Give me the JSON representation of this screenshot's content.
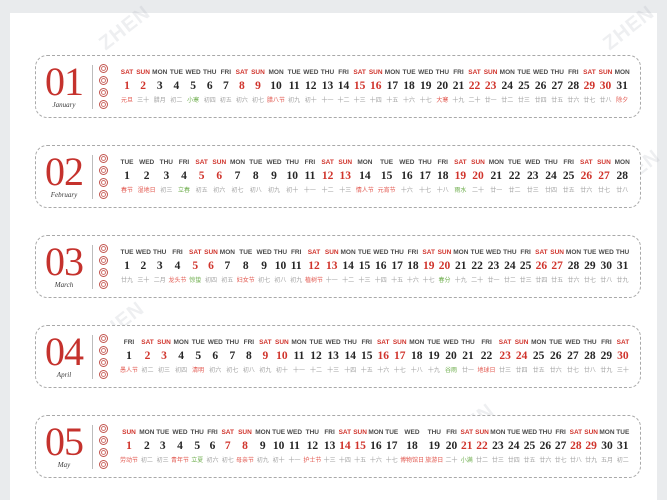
{
  "page": {
    "background": "#e9ebed",
    "canvas_background": "#ffffff",
    "watermark_text": "ZHEN"
  },
  "colors": {
    "accent_red": "#c5322d",
    "weekend_red": "#d0342c",
    "festival_red": "#e2574e",
    "solar_term_green": "#6fae4e",
    "weekday_gray": "#4a4a4a",
    "lunar_gray": "#a3a3a3",
    "date_black": "#262626",
    "border_gray": "#a9a9a9"
  },
  "months": [
    {
      "number": "01",
      "name": "January",
      "days": [
        [
          "SAT",
          "元旦",
          "f"
        ],
        [
          "SUN",
          "三十",
          ""
        ],
        [
          "MON",
          "腊月",
          ""
        ],
        [
          "TUE",
          "初二",
          ""
        ],
        [
          "WED",
          "小寒",
          "g"
        ],
        [
          "THU",
          "初四",
          ""
        ],
        [
          "FRI",
          "初五",
          ""
        ],
        [
          "SAT",
          "初六",
          ""
        ],
        [
          "SUN",
          "初七",
          ""
        ],
        [
          "MON",
          "腊八节",
          "f"
        ],
        [
          "TUE",
          "初九",
          ""
        ],
        [
          "WED",
          "初十",
          ""
        ],
        [
          "THU",
          "十一",
          ""
        ],
        [
          "FRI",
          "十二",
          ""
        ],
        [
          "SAT",
          "十三",
          ""
        ],
        [
          "SUN",
          "十四",
          ""
        ],
        [
          "MON",
          "十五",
          ""
        ],
        [
          "TUE",
          "十六",
          ""
        ],
        [
          "WED",
          "十七",
          ""
        ],
        [
          "THU",
          "大寒",
          "f"
        ],
        [
          "FRI",
          "十九",
          ""
        ],
        [
          "SAT",
          "二十",
          ""
        ],
        [
          "SUN",
          "廿一",
          ""
        ],
        [
          "MON",
          "廿二",
          ""
        ],
        [
          "TUE",
          "廿三",
          ""
        ],
        [
          "WED",
          "廿四",
          ""
        ],
        [
          "THU",
          "廿五",
          ""
        ],
        [
          "FRI",
          "廿六",
          ""
        ],
        [
          "SAT",
          "廿七",
          ""
        ],
        [
          "SUN",
          "廿八",
          ""
        ],
        [
          "MON",
          "除夕",
          "f"
        ]
      ]
    },
    {
      "number": "02",
      "name": "February",
      "days": [
        [
          "TUE",
          "春节",
          "f"
        ],
        [
          "WED",
          "湿地日",
          "f"
        ],
        [
          "THU",
          "初三",
          ""
        ],
        [
          "FRI",
          "立春",
          "g"
        ],
        [
          "SAT",
          "初五",
          ""
        ],
        [
          "SUN",
          "初六",
          ""
        ],
        [
          "MON",
          "初七",
          ""
        ],
        [
          "TUE",
          "初八",
          ""
        ],
        [
          "WED",
          "初九",
          ""
        ],
        [
          "THU",
          "初十",
          ""
        ],
        [
          "FRI",
          "十一",
          ""
        ],
        [
          "SAT",
          "十二",
          ""
        ],
        [
          "SUN",
          "十三",
          ""
        ],
        [
          "MON",
          "情人节",
          "f"
        ],
        [
          "TUE",
          "元宵节",
          "f"
        ],
        [
          "WED",
          "十六",
          ""
        ],
        [
          "THU",
          "十七",
          ""
        ],
        [
          "FRI",
          "十八",
          ""
        ],
        [
          "SAT",
          "雨水",
          "g"
        ],
        [
          "SUN",
          "二十",
          ""
        ],
        [
          "MON",
          "廿一",
          ""
        ],
        [
          "TUE",
          "廿二",
          ""
        ],
        [
          "WED",
          "廿三",
          ""
        ],
        [
          "THU",
          "廿四",
          ""
        ],
        [
          "FRI",
          "廿五",
          ""
        ],
        [
          "SAT",
          "廿六",
          ""
        ],
        [
          "SUN",
          "廿七",
          ""
        ],
        [
          "MON",
          "廿八",
          ""
        ]
      ]
    },
    {
      "number": "03",
      "name": "March",
      "days": [
        [
          "TUE",
          "廿九",
          ""
        ],
        [
          "WED",
          "三十",
          ""
        ],
        [
          "THU",
          "二月",
          ""
        ],
        [
          "FRI",
          "龙头节",
          "f"
        ],
        [
          "SAT",
          "惊蛰",
          "g"
        ],
        [
          "SUN",
          "初四",
          ""
        ],
        [
          "MON",
          "初五",
          ""
        ],
        [
          "TUE",
          "妇女节",
          "f"
        ],
        [
          "WED",
          "初七",
          ""
        ],
        [
          "THU",
          "初八",
          ""
        ],
        [
          "FRI",
          "初九",
          ""
        ],
        [
          "SAT",
          "植树节",
          "f"
        ],
        [
          "SUN",
          "十一",
          ""
        ],
        [
          "MON",
          "十二",
          ""
        ],
        [
          "TUE",
          "十三",
          ""
        ],
        [
          "WED",
          "十四",
          ""
        ],
        [
          "THU",
          "十五",
          ""
        ],
        [
          "FRI",
          "十六",
          ""
        ],
        [
          "SAT",
          "十七",
          ""
        ],
        [
          "SUN",
          "春分",
          "g"
        ],
        [
          "MON",
          "十九",
          ""
        ],
        [
          "TUE",
          "二十",
          ""
        ],
        [
          "WED",
          "廿一",
          ""
        ],
        [
          "THU",
          "廿二",
          ""
        ],
        [
          "FRI",
          "廿三",
          ""
        ],
        [
          "SAT",
          "廿四",
          ""
        ],
        [
          "SUN",
          "廿五",
          ""
        ],
        [
          "MON",
          "廿六",
          ""
        ],
        [
          "TUE",
          "廿七",
          ""
        ],
        [
          "WED",
          "廿八",
          ""
        ],
        [
          "THU",
          "廿九",
          ""
        ]
      ]
    },
    {
      "number": "04",
      "name": "April",
      "days": [
        [
          "FRI",
          "愚人节",
          "f"
        ],
        [
          "SAT",
          "初二",
          ""
        ],
        [
          "SUN",
          "初三",
          ""
        ],
        [
          "MON",
          "初四",
          ""
        ],
        [
          "TUE",
          "清明",
          "f"
        ],
        [
          "WED",
          "初六",
          ""
        ],
        [
          "THU",
          "初七",
          ""
        ],
        [
          "FRI",
          "初八",
          ""
        ],
        [
          "SAT",
          "初九",
          ""
        ],
        [
          "SUN",
          "初十",
          ""
        ],
        [
          "MON",
          "十一",
          ""
        ],
        [
          "TUE",
          "十二",
          ""
        ],
        [
          "WED",
          "十三",
          ""
        ],
        [
          "THU",
          "十四",
          ""
        ],
        [
          "FRI",
          "十五",
          ""
        ],
        [
          "SAT",
          "十六",
          ""
        ],
        [
          "SUN",
          "十七",
          ""
        ],
        [
          "MON",
          "十八",
          ""
        ],
        [
          "TUE",
          "十九",
          ""
        ],
        [
          "WED",
          "谷雨",
          "g"
        ],
        [
          "THU",
          "廿一",
          ""
        ],
        [
          "FRI",
          "地球日",
          "f"
        ],
        [
          "SAT",
          "廿三",
          ""
        ],
        [
          "SUN",
          "廿四",
          ""
        ],
        [
          "MON",
          "廿五",
          ""
        ],
        [
          "TUE",
          "廿六",
          ""
        ],
        [
          "WED",
          "廿七",
          ""
        ],
        [
          "THU",
          "廿八",
          ""
        ],
        [
          "FRI",
          "廿九",
          ""
        ],
        [
          "SAT",
          "三十",
          ""
        ]
      ]
    },
    {
      "number": "05",
      "name": "May",
      "days": [
        [
          "SUN",
          "劳动节",
          "f"
        ],
        [
          "MON",
          "初二",
          ""
        ],
        [
          "TUE",
          "初三",
          ""
        ],
        [
          "WED",
          "青年节",
          "f"
        ],
        [
          "THU",
          "立夏",
          "g"
        ],
        [
          "FRI",
          "初六",
          ""
        ],
        [
          "SAT",
          "初七",
          ""
        ],
        [
          "SUN",
          "母亲节",
          "f"
        ],
        [
          "MON",
          "初九",
          ""
        ],
        [
          "TUE",
          "初十",
          ""
        ],
        [
          "WED",
          "十一",
          ""
        ],
        [
          "THU",
          "护士节",
          "f"
        ],
        [
          "FRI",
          "十三",
          ""
        ],
        [
          "SAT",
          "十四",
          ""
        ],
        [
          "SUN",
          "十五",
          ""
        ],
        [
          "MON",
          "十六",
          ""
        ],
        [
          "TUE",
          "十七",
          ""
        ],
        [
          "WED",
          "博物馆日",
          "f"
        ],
        [
          "THU",
          "旅游日",
          "f"
        ],
        [
          "FRI",
          "二十",
          ""
        ],
        [
          "SAT",
          "小满",
          "g"
        ],
        [
          "SUN",
          "廿二",
          ""
        ],
        [
          "MON",
          "廿三",
          ""
        ],
        [
          "TUE",
          "廿四",
          ""
        ],
        [
          "WED",
          "廿五",
          ""
        ],
        [
          "THU",
          "廿六",
          ""
        ],
        [
          "FRI",
          "廿七",
          ""
        ],
        [
          "SAT",
          "廿八",
          ""
        ],
        [
          "SUN",
          "廿九",
          ""
        ],
        [
          "MON",
          "五月",
          ""
        ],
        [
          "TUE",
          "初二",
          ""
        ]
      ]
    }
  ]
}
